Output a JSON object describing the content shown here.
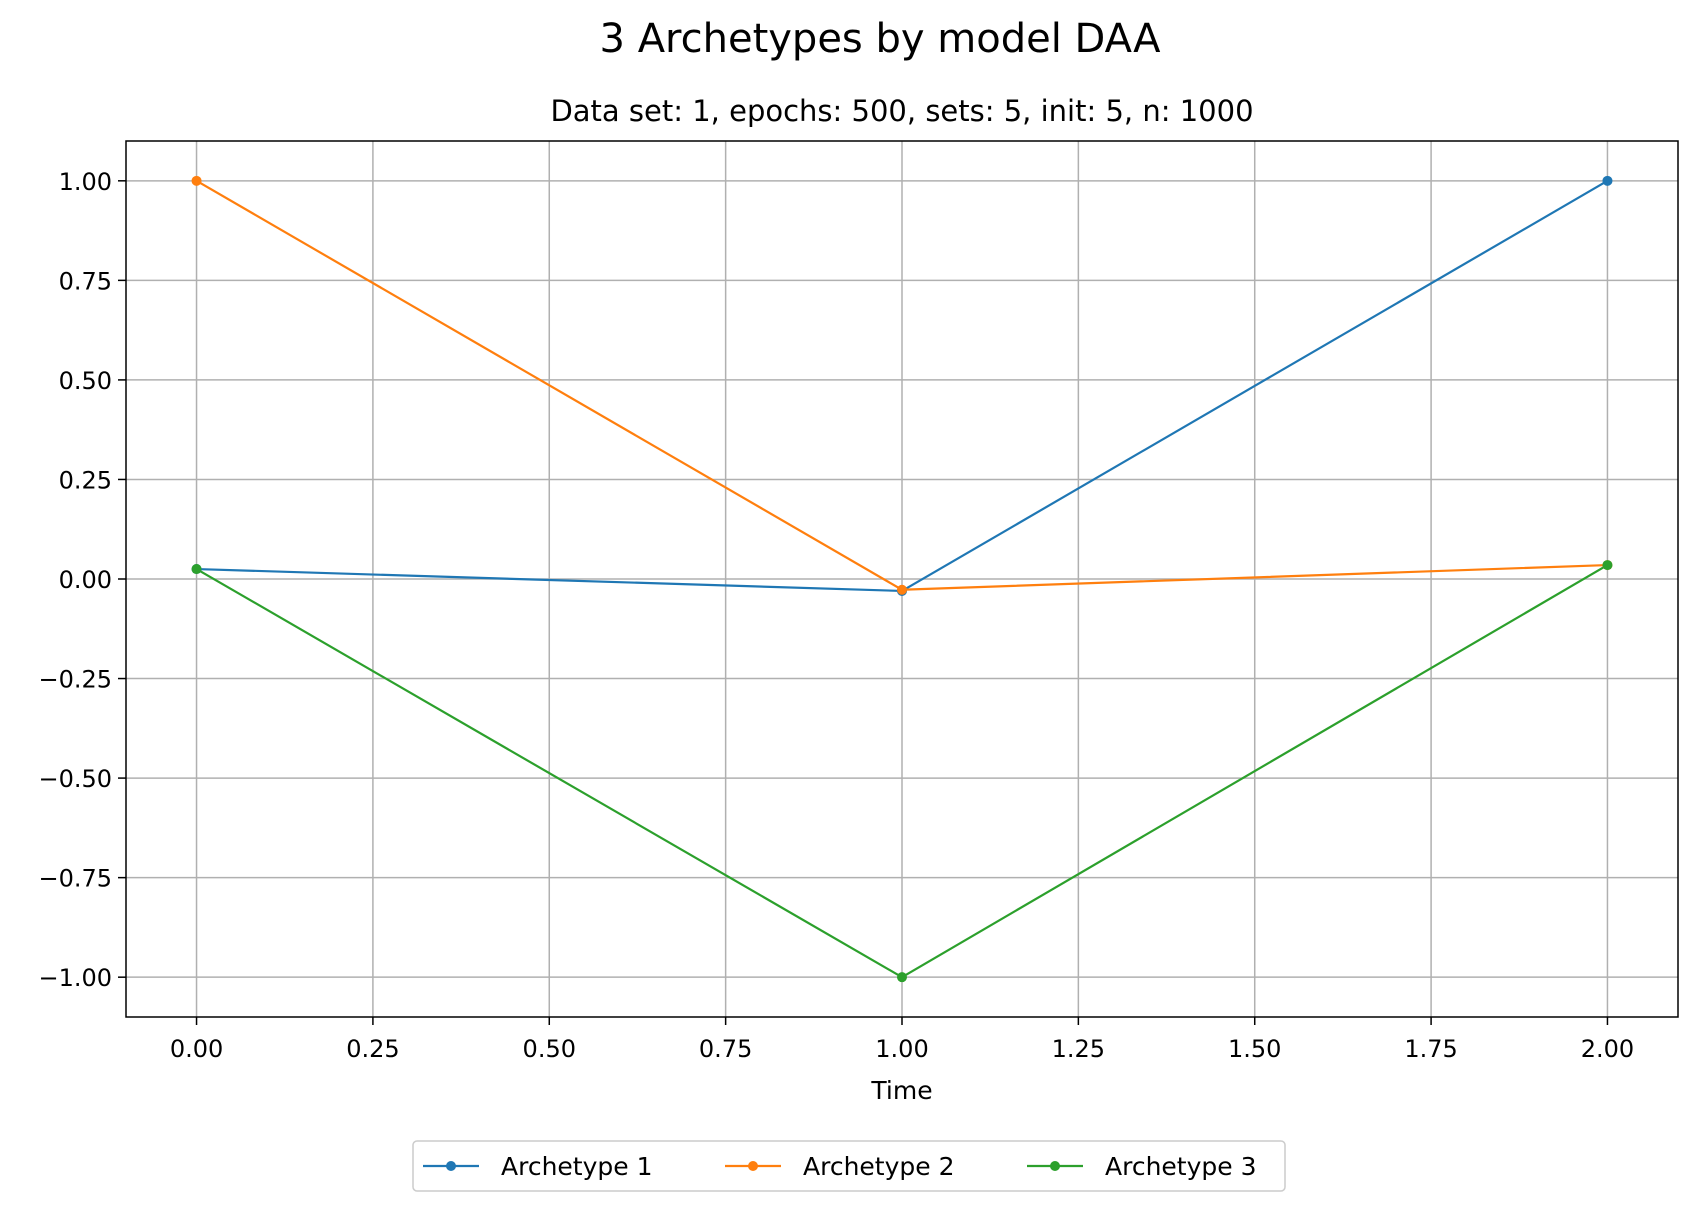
{
  "chart_data": {
    "type": "line",
    "title": "3 Archetypes by model DAA",
    "subtitle": "Data set: 1, epochs: 500, sets: 5, init: 5, n: 1000",
    "xlabel": "Time",
    "ylabel": "",
    "x": [
      0,
      1,
      2
    ],
    "xlim": [
      -0.1,
      2.1
    ],
    "ylim": [
      -1.1,
      1.1
    ],
    "xticks": [
      0.0,
      0.25,
      0.5,
      0.75,
      1.0,
      1.25,
      1.5,
      1.75,
      2.0
    ],
    "xtick_labels": [
      "0.00",
      "0.25",
      "0.50",
      "0.75",
      "1.00",
      "1.25",
      "1.50",
      "1.75",
      "2.00"
    ],
    "yticks": [
      1.0,
      0.75,
      0.5,
      0.25,
      0.0,
      -0.25,
      -0.5,
      -0.75,
      -1.0
    ],
    "ytick_labels": [
      "1.00",
      "0.75",
      "0.50",
      "0.25",
      "0.00",
      "−0.25",
      "−0.50",
      "−0.75",
      "−1.00"
    ],
    "grid": true,
    "legend_position": "bottom-center",
    "series": [
      {
        "name": "Archetype 1",
        "values": [
          0.025,
          -0.03,
          1.0
        ],
        "color": "#1f77b4"
      },
      {
        "name": "Archetype 2",
        "values": [
          1.0,
          -0.027,
          0.035
        ],
        "color": "#ff7f0e"
      },
      {
        "name": "Archetype 3",
        "values": [
          0.025,
          -1.0,
          0.035
        ],
        "color": "#2ca02c"
      }
    ]
  }
}
